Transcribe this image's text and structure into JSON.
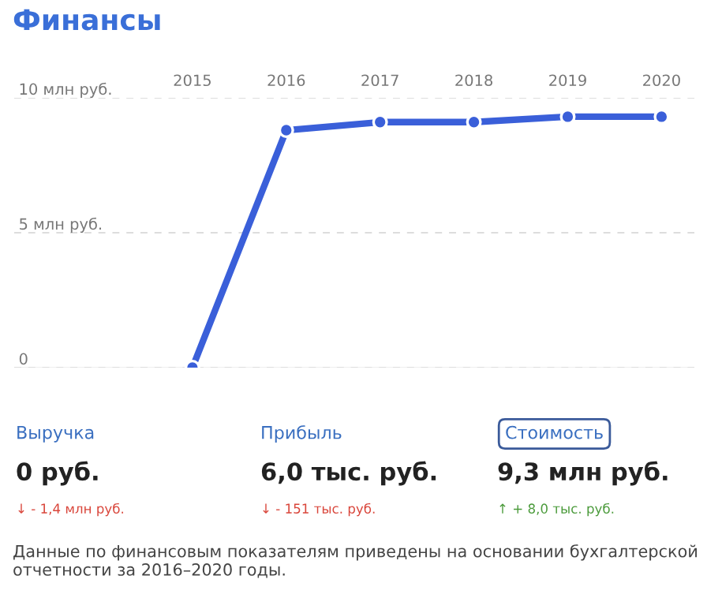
{
  "chart_data": [
    {
      "type": "line",
      "title": "Финансы",
      "categories": [
        "2015",
        "2016",
        "2017",
        "2018",
        "2019",
        "2020"
      ],
      "series": [
        {
          "color": "#3a5fd9",
          "values": [
            0,
            8.8,
            9.1,
            9.1,
            9.3,
            9.3
          ]
        }
      ],
      "ylim": [
        0,
        10
      ],
      "yticks": [
        {
          "value": 0,
          "label": "0"
        },
        {
          "value": 5,
          "label": "5 млн руб."
        },
        {
          "value": 10,
          "label": "10 млн руб."
        }
      ],
      "grid": "y",
      "marker": "circle",
      "line_style": "solid"
    },
    {
      "type": "other",
      "annotations": [
        "Выручка",
        "0 руб.",
        "↓ - 1,4 млн руб.",
        "Прибыль",
        "6,0 тыс. руб.",
        "↓ - 151 тыс. руб.",
        "Стоимость",
        "9,3 млн руб.",
        "↑ + 8,0 тыс. руб.",
        "Данные по финансовым показателям приведены на основании бухгалтерской отчетности за 2016–2020 годы."
      ]
    }
  ]
}
